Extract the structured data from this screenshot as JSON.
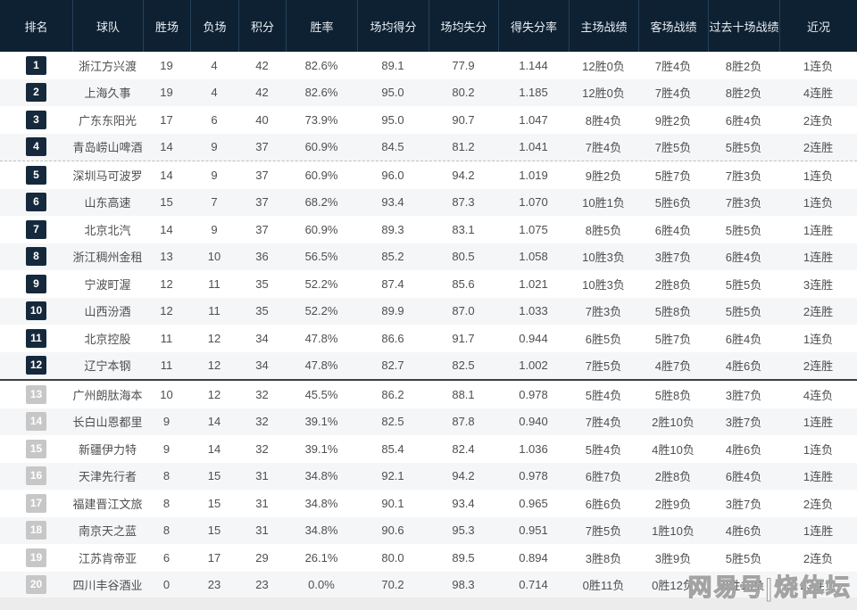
{
  "watermark": {
    "text": "网易号|烧体坛"
  },
  "colors": {
    "header_bg": "#0e2132",
    "header_divider": "#23405a",
    "badge_dark": "#16293c",
    "badge_gray": "#c7c7c7",
    "row_alt_bg": "#f5f6f7",
    "body_text": "#4f4f4f"
  },
  "layout": {
    "dashed_separator_after_rank": "4",
    "solid_separator_after_rank": "12"
  },
  "chart_data": {
    "type": "table",
    "title": "",
    "columns": [
      "排名",
      "球队",
      "胜场",
      "负场",
      "积分",
      "胜率",
      "场均得分",
      "场均失分",
      "得失分率",
      "主场战绩",
      "客场战绩",
      "过去十场战绩",
      "近况"
    ],
    "rows": [
      {
        "rank": "1",
        "team": "浙江方兴渡",
        "wins": "19",
        "losses": "4",
        "points": "42",
        "win_pct": "82.6%",
        "avg_pts_for": "89.1",
        "avg_pts_against": "77.9",
        "score_ratio": "1.144",
        "home_record": "12胜0负",
        "away_record": "7胜4负",
        "last10_record": "8胜2负",
        "recent_form": "1连负"
      },
      {
        "rank": "2",
        "team": "上海久事",
        "wins": "19",
        "losses": "4",
        "points": "42",
        "win_pct": "82.6%",
        "avg_pts_for": "95.0",
        "avg_pts_against": "80.2",
        "score_ratio": "1.185",
        "home_record": "12胜0负",
        "away_record": "7胜4负",
        "last10_record": "8胜2负",
        "recent_form": "4连胜"
      },
      {
        "rank": "3",
        "team": "广东东阳光",
        "wins": "17",
        "losses": "6",
        "points": "40",
        "win_pct": "73.9%",
        "avg_pts_for": "95.0",
        "avg_pts_against": "90.7",
        "score_ratio": "1.047",
        "home_record": "8胜4负",
        "away_record": "9胜2负",
        "last10_record": "6胜4负",
        "recent_form": "2连负"
      },
      {
        "rank": "4",
        "team": "青岛崂山啤酒",
        "wins": "14",
        "losses": "9",
        "points": "37",
        "win_pct": "60.9%",
        "avg_pts_for": "84.5",
        "avg_pts_against": "81.2",
        "score_ratio": "1.041",
        "home_record": "7胜4负",
        "away_record": "7胜5负",
        "last10_record": "5胜5负",
        "recent_form": "2连胜"
      },
      {
        "rank": "5",
        "team": "深圳马可波罗",
        "wins": "14",
        "losses": "9",
        "points": "37",
        "win_pct": "60.9%",
        "avg_pts_for": "96.0",
        "avg_pts_against": "94.2",
        "score_ratio": "1.019",
        "home_record": "9胜2负",
        "away_record": "5胜7负",
        "last10_record": "7胜3负",
        "recent_form": "1连负"
      },
      {
        "rank": "6",
        "team": "山东高速",
        "wins": "15",
        "losses": "7",
        "points": "37",
        "win_pct": "68.2%",
        "avg_pts_for": "93.4",
        "avg_pts_against": "87.3",
        "score_ratio": "1.070",
        "home_record": "10胜1负",
        "away_record": "5胜6负",
        "last10_record": "7胜3负",
        "recent_form": "1连负"
      },
      {
        "rank": "7",
        "team": "北京北汽",
        "wins": "14",
        "losses": "9",
        "points": "37",
        "win_pct": "60.9%",
        "avg_pts_for": "89.3",
        "avg_pts_against": "83.1",
        "score_ratio": "1.075",
        "home_record": "8胜5负",
        "away_record": "6胜4负",
        "last10_record": "5胜5负",
        "recent_form": "1连胜"
      },
      {
        "rank": "8",
        "team": "浙江稠州金租",
        "wins": "13",
        "losses": "10",
        "points": "36",
        "win_pct": "56.5%",
        "avg_pts_for": "85.2",
        "avg_pts_against": "80.5",
        "score_ratio": "1.058",
        "home_record": "10胜3负",
        "away_record": "3胜7负",
        "last10_record": "6胜4负",
        "recent_form": "1连胜"
      },
      {
        "rank": "9",
        "team": "宁波町渥",
        "wins": "12",
        "losses": "11",
        "points": "35",
        "win_pct": "52.2%",
        "avg_pts_for": "87.4",
        "avg_pts_against": "85.6",
        "score_ratio": "1.021",
        "home_record": "10胜3负",
        "away_record": "2胜8负",
        "last10_record": "5胜5负",
        "recent_form": "3连胜"
      },
      {
        "rank": "10",
        "team": "山西汾酒",
        "wins": "12",
        "losses": "11",
        "points": "35",
        "win_pct": "52.2%",
        "avg_pts_for": "89.9",
        "avg_pts_against": "87.0",
        "score_ratio": "1.033",
        "home_record": "7胜3负",
        "away_record": "5胜8负",
        "last10_record": "5胜5负",
        "recent_form": "2连胜"
      },
      {
        "rank": "11",
        "team": "北京控股",
        "wins": "11",
        "losses": "12",
        "points": "34",
        "win_pct": "47.8%",
        "avg_pts_for": "86.6",
        "avg_pts_against": "91.7",
        "score_ratio": "0.944",
        "home_record": "6胜5负",
        "away_record": "5胜7负",
        "last10_record": "6胜4负",
        "recent_form": "1连负"
      },
      {
        "rank": "12",
        "team": "辽宁本钢",
        "wins": "11",
        "losses": "12",
        "points": "34",
        "win_pct": "47.8%",
        "avg_pts_for": "82.7",
        "avg_pts_against": "82.5",
        "score_ratio": "1.002",
        "home_record": "7胜5负",
        "away_record": "4胜7负",
        "last10_record": "4胜6负",
        "recent_form": "2连胜"
      },
      {
        "rank": "13",
        "team": "广州朗肽海本",
        "wins": "10",
        "losses": "12",
        "points": "32",
        "win_pct": "45.5%",
        "avg_pts_for": "86.2",
        "avg_pts_against": "88.1",
        "score_ratio": "0.978",
        "home_record": "5胜4负",
        "away_record": "5胜8负",
        "last10_record": "3胜7负",
        "recent_form": "4连负"
      },
      {
        "rank": "14",
        "team": "长白山恩都里",
        "wins": "9",
        "losses": "14",
        "points": "32",
        "win_pct": "39.1%",
        "avg_pts_for": "82.5",
        "avg_pts_against": "87.8",
        "score_ratio": "0.940",
        "home_record": "7胜4负",
        "away_record": "2胜10负",
        "last10_record": "3胜7负",
        "recent_form": "1连胜"
      },
      {
        "rank": "15",
        "team": "新疆伊力特",
        "wins": "9",
        "losses": "14",
        "points": "32",
        "win_pct": "39.1%",
        "avg_pts_for": "85.4",
        "avg_pts_against": "82.4",
        "score_ratio": "1.036",
        "home_record": "5胜4负",
        "away_record": "4胜10负",
        "last10_record": "4胜6负",
        "recent_form": "1连负"
      },
      {
        "rank": "16",
        "team": "天津先行者",
        "wins": "8",
        "losses": "15",
        "points": "31",
        "win_pct": "34.8%",
        "avg_pts_for": "92.1",
        "avg_pts_against": "94.2",
        "score_ratio": "0.978",
        "home_record": "6胜7负",
        "away_record": "2胜8负",
        "last10_record": "6胜4负",
        "recent_form": "1连胜"
      },
      {
        "rank": "17",
        "team": "福建晋江文旅",
        "wins": "8",
        "losses": "15",
        "points": "31",
        "win_pct": "34.8%",
        "avg_pts_for": "90.1",
        "avg_pts_against": "93.4",
        "score_ratio": "0.965",
        "home_record": "6胜6负",
        "away_record": "2胜9负",
        "last10_record": "3胜7负",
        "recent_form": "2连负"
      },
      {
        "rank": "18",
        "team": "南京天之蓝",
        "wins": "8",
        "losses": "15",
        "points": "31",
        "win_pct": "34.8%",
        "avg_pts_for": "90.6",
        "avg_pts_against": "95.3",
        "score_ratio": "0.951",
        "home_record": "7胜5负",
        "away_record": "1胜10负",
        "last10_record": "4胜6负",
        "recent_form": "1连胜"
      },
      {
        "rank": "19",
        "team": "江苏肯帝亚",
        "wins": "6",
        "losses": "17",
        "points": "29",
        "win_pct": "26.1%",
        "avg_pts_for": "80.0",
        "avg_pts_against": "89.5",
        "score_ratio": "0.894",
        "home_record": "3胜8负",
        "away_record": "3胜9负",
        "last10_record": "5胜5负",
        "recent_form": "2连负"
      },
      {
        "rank": "20",
        "team": "四川丰谷酒业",
        "wins": "0",
        "losses": "23",
        "points": "23",
        "win_pct": "0.0%",
        "avg_pts_for": "70.2",
        "avg_pts_against": "98.3",
        "score_ratio": "0.714",
        "home_record": "0胜11负",
        "away_record": "0胜12负",
        "last10_record": "0胜10负",
        "recent_form": "23连负"
      }
    ]
  }
}
